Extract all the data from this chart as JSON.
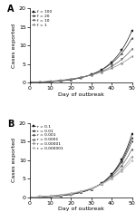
{
  "days_dense": 51,
  "panel_A": {
    "title": "A",
    "series": [
      {
        "label": "f = 100",
        "end_val": 14.0,
        "growth": 0.092
      },
      {
        "label": "f = 20",
        "end_val": 12.0,
        "growth": 0.082
      },
      {
        "label": "f = 10",
        "end_val": 9.0,
        "growth": 0.07
      },
      {
        "label": "f = 1",
        "end_val": 7.0,
        "growth": 0.055
      }
    ],
    "colors": [
      "#1a1a1a",
      "#3d3d3d",
      "#606060",
      "#8a8a8a"
    ],
    "markers": [
      "s",
      "^",
      "v",
      "o"
    ],
    "ylim": [
      0,
      20
    ],
    "xlim": [
      0,
      50
    ],
    "yticks": [
      0,
      5,
      10,
      15,
      20
    ],
    "xticks": [
      0,
      10,
      20,
      30,
      40,
      50
    ],
    "ylabel": "Cases exported",
    "xlabel": "Day of outbreak"
  },
  "panel_B": {
    "title": "B",
    "series": [
      {
        "label": "r = 0.1",
        "end_val": 17.0,
        "growth": 0.1
      },
      {
        "label": "r = 0.01",
        "end_val": 16.0,
        "growth": 0.096
      },
      {
        "label": "r = 0.001",
        "end_val": 15.0,
        "growth": 0.091
      },
      {
        "label": "r = 0.0001",
        "end_val": 13.0,
        "growth": 0.083
      },
      {
        "label": "r = 0.00001",
        "end_val": 11.0,
        "growth": 0.073
      },
      {
        "label": "r = 0.000001",
        "end_val": 10.0,
        "growth": 0.065
      }
    ],
    "colors": [
      "#1a1a1a",
      "#2e2e2e",
      "#484848",
      "#686868",
      "#989898",
      "#b8b8b8"
    ],
    "markers": [
      "s",
      "^",
      "v",
      "o",
      "D",
      "D"
    ],
    "ylim": [
      0,
      20
    ],
    "xlim": [
      0,
      50
    ],
    "yticks": [
      0,
      5,
      10,
      15,
      20
    ],
    "xticks": [
      0,
      10,
      20,
      30,
      40,
      50
    ],
    "ylabel": "Cases exported",
    "xlabel": "Day of outbreak"
  }
}
